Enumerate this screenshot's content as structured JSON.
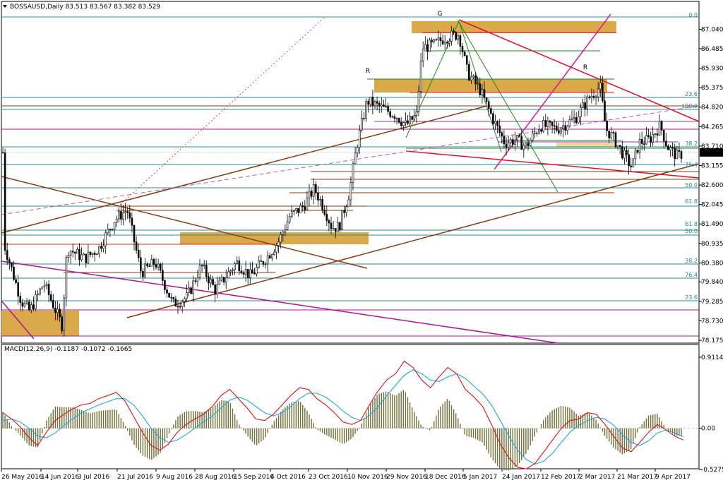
{
  "chart_data": {
    "type": "candlestick",
    "symbol_header": "BOSSAUSD,Daily",
    "ohlc_header": "83.513 83.567 83.382 83.529",
    "current_price": "83.529",
    "price_axis": {
      "min": 78.175,
      "max": 87.59,
      "ticks": [
        "87.040",
        "86.485",
        "85.930",
        "85.375",
        "84.820",
        "84.265",
        "83.710",
        "83.155",
        "82.600",
        "82.045",
        "81.490",
        "80.935",
        "80.380",
        "79.840",
        "79.285",
        "78.730",
        "78.175"
      ]
    },
    "time_axis": [
      "26 May 2016",
      "14 Jun 2016",
      "3 Jul 2016",
      "21 Jul 2016",
      "9 Aug 2016",
      "28 Aug 2016",
      "15 Sep 2016",
      "4 Oct 2016",
      "23 Oct 2016",
      "10 Nov 2016",
      "29 Nov 2016",
      "18 Dec 2016",
      "5 Jan 2017",
      "24 Jan 2017",
      "12 Feb 2017",
      "2 Mar 2017",
      "21 Mar 2017",
      "9 Apr 2017"
    ],
    "annotations": [
      "G",
      "R",
      "R"
    ],
    "fib_levels": [
      "0.0",
      "23.6",
      "100.0",
      "38.2",
      "76.4",
      "50.0",
      "61.8",
      "61.8",
      "50.0",
      "38.2",
      "76.4",
      "23.6"
    ],
    "macd": {
      "label": "MACD(12,26,9)",
      "values": "-0.1187 -0.1072 -0.1665",
      "axis": {
        "min": -0.5275,
        "max": 0.9114,
        "ticks": [
          "0.9114",
          "0.00",
          "-0.5275"
        ]
      },
      "macd_line": [
        0.2,
        0.12,
        0.02,
        -0.12,
        -0.22,
        -0.05,
        0.1,
        0.18,
        0.25,
        0.3,
        0.32,
        0.38,
        0.42,
        0.46,
        0.35,
        0.15,
        -0.05,
        -0.22,
        -0.28,
        -0.2,
        -0.05,
        0.05,
        0.12,
        0.18,
        0.28,
        0.42,
        0.5,
        0.38,
        0.26,
        0.12,
        0.1,
        0.18,
        0.3,
        0.42,
        0.52,
        0.5,
        0.38,
        0.3,
        0.2,
        0.08,
        0.05,
        0.1,
        0.3,
        0.48,
        0.62,
        0.7,
        0.86,
        0.78,
        0.62,
        0.52,
        0.66,
        0.78,
        0.7,
        0.5,
        0.4,
        0.28,
        0.05,
        -0.2,
        -0.38,
        -0.5,
        -0.52,
        -0.45,
        -0.3,
        -0.15,
        0.0,
        0.1,
        0.12,
        0.2,
        0.18,
        0.05,
        -0.1,
        -0.25,
        -0.3,
        -0.18,
        -0.05,
        0.05,
        -0.02,
        -0.1,
        -0.15
      ],
      "signal_line": [
        0.1,
        0.12,
        0.08,
        0.0,
        -0.1,
        -0.12,
        -0.06,
        0.04,
        0.12,
        0.2,
        0.25,
        0.3,
        0.34,
        0.38,
        0.38,
        0.3,
        0.16,
        0.0,
        -0.12,
        -0.18,
        -0.15,
        -0.08,
        0.0,
        0.08,
        0.16,
        0.26,
        0.36,
        0.4,
        0.36,
        0.28,
        0.2,
        0.16,
        0.2,
        0.28,
        0.38,
        0.45,
        0.45,
        0.4,
        0.32,
        0.22,
        0.14,
        0.1,
        0.16,
        0.28,
        0.42,
        0.55,
        0.68,
        0.75,
        0.7,
        0.62,
        0.6,
        0.66,
        0.7,
        0.64,
        0.54,
        0.44,
        0.3,
        0.1,
        -0.1,
        -0.28,
        -0.4,
        -0.46,
        -0.42,
        -0.32,
        -0.18,
        -0.05,
        0.04,
        0.1,
        0.14,
        0.12,
        0.04,
        -0.08,
        -0.18,
        -0.22,
        -0.16,
        -0.06,
        -0.02,
        -0.06,
        -0.11
      ]
    }
  }
}
